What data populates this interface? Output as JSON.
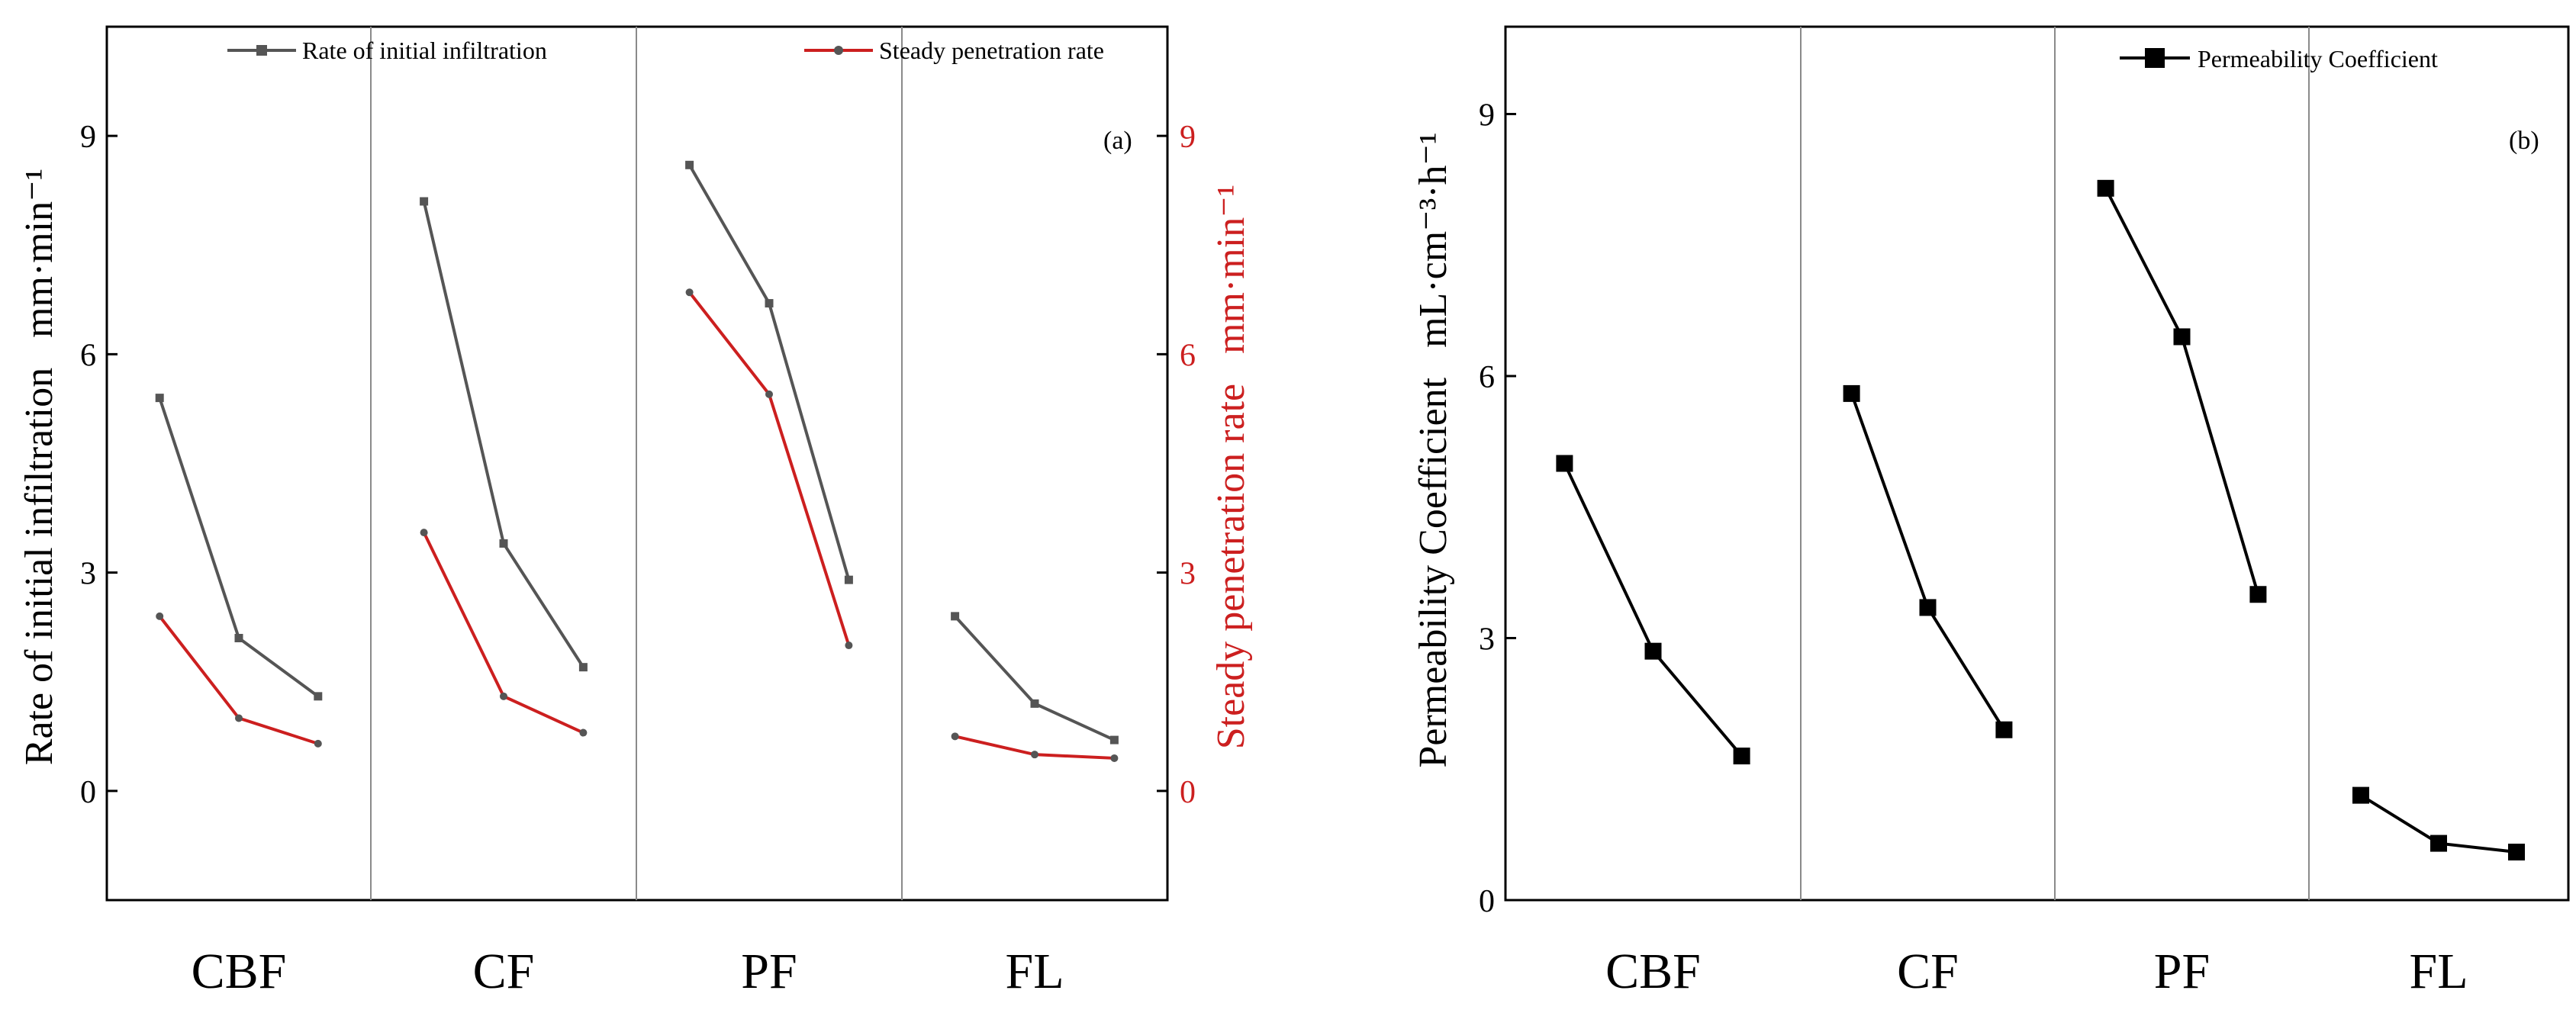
{
  "colors": {
    "initial": "#555555",
    "steady": "#cc1f1f",
    "perm": "#000000",
    "axis": "#000000",
    "divider": "#8a8a8a"
  },
  "chart_data": [
    {
      "type": "line",
      "panel_label": "(a)",
      "groups": [
        "CBF",
        "CF",
        "PF",
        "FL"
      ],
      "points_per_group": 3,
      "ylabel_left": "Rate of initial infiltration",
      "ylabel_left_unit": "mm·min⁻¹",
      "ylabel_right": "Steady penetration rate",
      "ylabel_right_unit": "mm·min⁻¹",
      "ylim": [
        -1.5,
        10.5
      ],
      "yticks": [
        0,
        3,
        6,
        9
      ],
      "series": [
        {
          "name": "Rate of initial infiltration",
          "axis": "left",
          "values": [
            [
              5.4,
              2.1,
              1.3
            ],
            [
              8.1,
              3.4,
              1.7
            ],
            [
              8.6,
              6.7,
              2.9
            ],
            [
              2.4,
              1.2,
              0.7
            ]
          ]
        },
        {
          "name": "Steady penetration rate",
          "axis": "right",
          "values": [
            [
              2.4,
              1.0,
              0.65
            ],
            [
              3.55,
              1.3,
              0.8
            ],
            [
              6.85,
              5.45,
              2.0
            ],
            [
              0.75,
              0.5,
              0.45
            ]
          ]
        }
      ]
    },
    {
      "type": "line",
      "panel_label": "(b)",
      "groups": [
        "CBF",
        "CF",
        "PF",
        "FL"
      ],
      "points_per_group": 3,
      "ylabel": "Permeability Coefficient",
      "ylabel_unit": "mL·cm⁻³·h⁻¹",
      "ylim": [
        0,
        10
      ],
      "yticks": [
        0,
        3,
        6,
        9
      ],
      "series": [
        {
          "name": "Permeability Coefficient",
          "values": [
            [
              5.0,
              2.85,
              1.65
            ],
            [
              5.8,
              3.35,
              1.95
            ],
            [
              8.15,
              6.45,
              3.5
            ],
            [
              1.2,
              0.65,
              0.55
            ]
          ]
        }
      ]
    }
  ]
}
